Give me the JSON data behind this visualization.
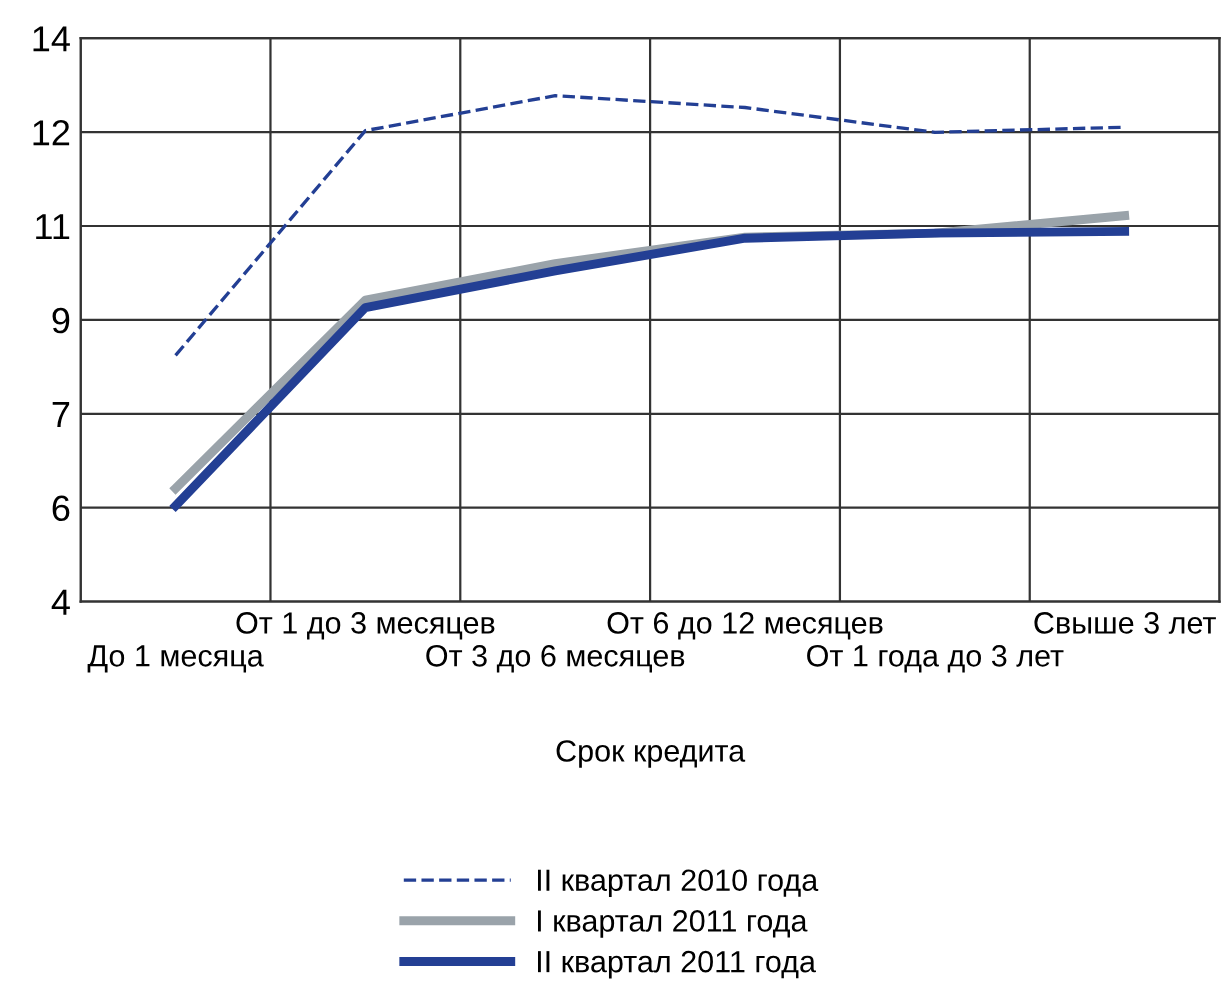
{
  "chart_data": {
    "type": "line",
    "xlabel": "Срок кредита",
    "categories": [
      "До 1 месяца",
      "От 1 до 3 месяцев",
      "От 3 до 6 месяцев",
      "От 6 до 12 месяцев",
      "От 1 года до 3 лет",
      "Свыше 3 лет"
    ],
    "series": [
      {
        "name": "II квартал 2010 года",
        "color": "#233f94",
        "line_style": "dashed",
        "values": [
          8.37,
          12.36,
          12.98,
          12.77,
          12.33,
          12.42
        ]
      },
      {
        "name": "I квартал 2011 года",
        "color": "#9aa3aa",
        "line_style": "solid",
        "values": [
          6.01,
          9.35,
          10.0,
          10.47,
          10.54,
          10.85
        ]
      },
      {
        "name": "II квартал 2011 года",
        "color": "#233f94",
        "line_style": "solid",
        "values": [
          5.7,
          9.22,
          9.87,
          10.45,
          10.54,
          10.57
        ]
      }
    ],
    "ylim": [
      4,
      14
    ],
    "yticks": [
      {
        "value": 4,
        "label": "4"
      },
      {
        "value": 5.667,
        "label": "6"
      },
      {
        "value": 7.333,
        "label": "7"
      },
      {
        "value": 9,
        "label": "9"
      },
      {
        "value": 10.667,
        "label": "11"
      },
      {
        "value": 12.333,
        "label": "12"
      },
      {
        "value": 14,
        "label": "14"
      }
    ],
    "grid": true,
    "legend": "bottom",
    "marker": "none"
  }
}
